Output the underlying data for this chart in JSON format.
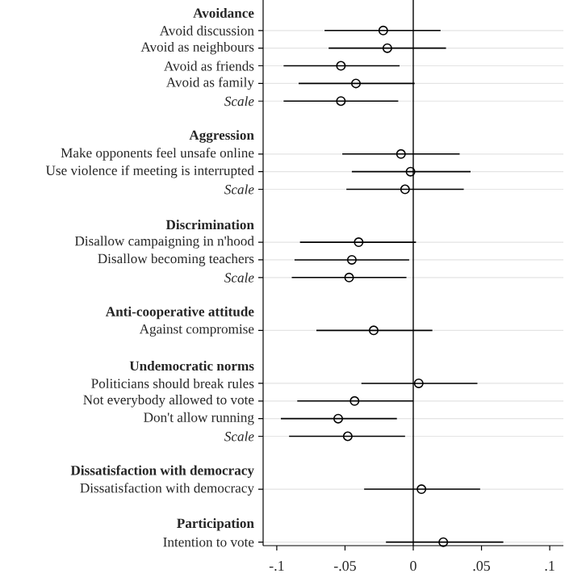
{
  "chart_data": {
    "type": "scatter",
    "orientation": "horizontal",
    "categories": [
      "Avoidance",
      "Avoid discussion",
      "Avoid as neighbours",
      "Avoid as friends",
      "Avoid as family",
      "*Scale*",
      null,
      "Aggression",
      "Make opponents feel unsafe online",
      "Use violence if meeting is interrupted",
      "*Scale*",
      null,
      "Discrimination",
      "Disallow campaigning in n'hood",
      "Disallow becoming teachers",
      "*Scale*",
      null,
      "Anti-cooperative attitude",
      "Against compromise",
      null,
      "Undemocratic norms",
      "Politicians should break rules",
      "Not everybody allowed to vote",
      "Don't allow running",
      "*Scale*",
      null,
      "Dissatisfaction with democracy",
      "Dissatisfaction with democracy",
      null,
      "Participation",
      "Intention to vote"
    ],
    "values": [
      null,
      -0.022,
      -0.019,
      -0.053,
      -0.042,
      -0.053,
      null,
      null,
      -0.009,
      -0.002,
      -0.006,
      null,
      null,
      -0.04,
      -0.045,
      -0.047,
      null,
      null,
      -0.029,
      null,
      null,
      0.004,
      -0.043,
      -0.055,
      -0.048,
      null,
      null,
      0.006,
      null,
      null,
      0.022
    ],
    "errors": [
      null,
      [
        -0.065,
        0.02
      ],
      [
        -0.062,
        0.024
      ],
      [
        -0.095,
        -0.01
      ],
      [
        -0.084,
        0.001
      ],
      [
        -0.095,
        -0.011
      ],
      null,
      null,
      [
        -0.052,
        0.034
      ],
      [
        -0.045,
        0.042
      ],
      [
        -0.049,
        0.037
      ],
      null,
      null,
      [
        -0.083,
        0.002
      ],
      [
        -0.087,
        -0.003
      ],
      [
        -0.089,
        -0.005
      ],
      null,
      null,
      [
        -0.071,
        0.014
      ],
      null,
      null,
      [
        -0.038,
        0.047
      ],
      [
        -0.085,
        0.0
      ],
      [
        -0.097,
        -0.012
      ],
      [
        -0.091,
        -0.006
      ],
      null,
      null,
      [
        -0.036,
        0.049
      ],
      null,
      null,
      [
        -0.02,
        0.066
      ]
    ],
    "color": "#000000",
    "marker": "circle",
    "grid": "y",
    "xlim": [
      -0.11,
      0.11
    ],
    "xticks": [
      {
        "value": -0.1,
        "label": "-.1"
      },
      {
        "value": -0.05,
        "label": "-.05"
      },
      0,
      {
        "value": 0.05,
        "label": ".05"
      },
      {
        "value": 0.1,
        "label": ".1"
      }
    ],
    "ref_lines": [
      {
        "axis": "x",
        "value": 0,
        "color": "#000000"
      }
    ]
  }
}
